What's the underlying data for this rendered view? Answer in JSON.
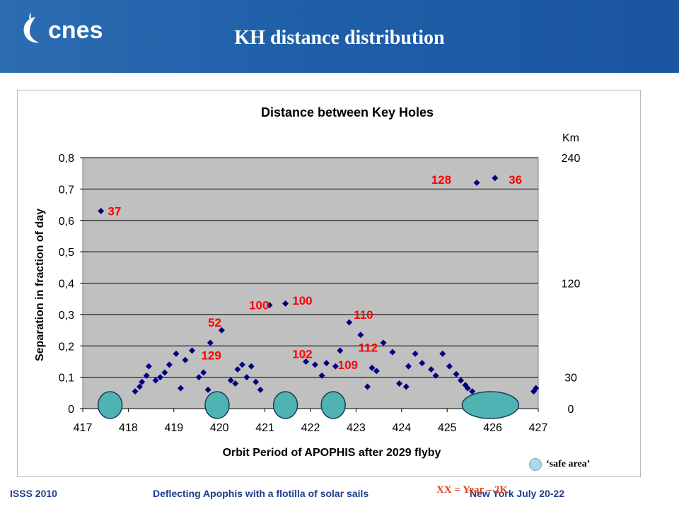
{
  "slide": {
    "title": "KH distance distribution",
    "logo": "cnes",
    "legend_label": "‘safe area’",
    "xx_note": "XX = Year – 2K",
    "footer": {
      "left": "ISSS 2010",
      "center": "Deflecting Apophis with a flotilla of solar sails",
      "right": "New York July 20-22"
    }
  },
  "colors": {
    "banner": "#1f5fa8",
    "plot_bg": "#c0c0c0",
    "marker": "#000080",
    "annotation": "#ff0000",
    "safe_area": "#4fb3b3"
  },
  "chart_data": {
    "type": "scatter",
    "title": "Distance between Key Holes",
    "xlabel": "Orbit Period of APOPHIS after 2029 flyby",
    "ylabel": "Separation in fraction of day",
    "xlim": [
      417,
      427
    ],
    "ylim": [
      0,
      0.8
    ],
    "x_ticks": [
      "417",
      "418",
      "419",
      "420",
      "421",
      "422",
      "423",
      "424",
      "425",
      "426",
      "427"
    ],
    "y_ticks": [
      "0",
      "0,1",
      "0,2",
      "0,3",
      "0,4",
      "0,5",
      "0,6",
      "0,7",
      "0,8"
    ],
    "y2_title": "Km",
    "y2_labels": [
      {
        "text": "240",
        "y": 0.8
      },
      {
        "text": "120",
        "y": 0.4
      },
      {
        "text": "30",
        "y": 0.1
      },
      {
        "text": "0",
        "y": 0.0
      }
    ],
    "grid": true,
    "points": [
      [
        417.4,
        0.63
      ],
      [
        418.15,
        0.055
      ],
      [
        418.25,
        0.07
      ],
      [
        418.3,
        0.085
      ],
      [
        418.4,
        0.105
      ],
      [
        418.45,
        0.135
      ],
      [
        418.6,
        0.09
      ],
      [
        418.7,
        0.1
      ],
      [
        418.8,
        0.115
      ],
      [
        418.9,
        0.14
      ],
      [
        419.05,
        0.175
      ],
      [
        419.15,
        0.065
      ],
      [
        419.25,
        0.155
      ],
      [
        419.4,
        0.185
      ],
      [
        419.55,
        0.1
      ],
      [
        419.65,
        0.115
      ],
      [
        419.75,
        0.06
      ],
      [
        419.8,
        0.21
      ],
      [
        420.05,
        0.25
      ],
      [
        420.25,
        0.09
      ],
      [
        420.35,
        0.08
      ],
      [
        420.4,
        0.125
      ],
      [
        420.5,
        0.14
      ],
      [
        420.6,
        0.1
      ],
      [
        420.7,
        0.135
      ],
      [
        420.8,
        0.085
      ],
      [
        420.9,
        0.06
      ],
      [
        421.1,
        0.33
      ],
      [
        421.45,
        0.335
      ],
      [
        421.9,
        0.15
      ],
      [
        422.1,
        0.14
      ],
      [
        422.25,
        0.105
      ],
      [
        422.35,
        0.145
      ],
      [
        422.55,
        0.135
      ],
      [
        422.65,
        0.185
      ],
      [
        422.85,
        0.275
      ],
      [
        423.1,
        0.235
      ],
      [
        423.25,
        0.07
      ],
      [
        423.35,
        0.13
      ],
      [
        423.45,
        0.12
      ],
      [
        423.6,
        0.21
      ],
      [
        423.8,
        0.18
      ],
      [
        423.95,
        0.08
      ],
      [
        424.1,
        0.07
      ],
      [
        424.15,
        0.135
      ],
      [
        424.3,
        0.175
      ],
      [
        424.45,
        0.145
      ],
      [
        424.65,
        0.125
      ],
      [
        424.75,
        0.105
      ],
      [
        424.9,
        0.175
      ],
      [
        425.05,
        0.135
      ],
      [
        425.2,
        0.11
      ],
      [
        425.3,
        0.09
      ],
      [
        425.4,
        0.075
      ],
      [
        425.45,
        0.065
      ],
      [
        425.55,
        0.055
      ],
      [
        425.65,
        0.72
      ],
      [
        426.05,
        0.735
      ],
      [
        426.9,
        0.055
      ],
      [
        426.95,
        0.065
      ]
    ],
    "annotations": [
      {
        "text": "37",
        "x": 417.55,
        "y": 0.63
      },
      {
        "text": "52",
        "x": 419.75,
        "y": 0.275
      },
      {
        "text": "129",
        "x": 419.6,
        "y": 0.17
      },
      {
        "text": "100",
        "x": 420.65,
        "y": 0.33
      },
      {
        "text": "100",
        "x": 421.6,
        "y": 0.345
      },
      {
        "text": "102",
        "x": 421.6,
        "y": 0.175
      },
      {
        "text": "109",
        "x": 422.6,
        "y": 0.14
      },
      {
        "text": "110",
        "x": 422.95,
        "y": 0.3
      },
      {
        "text": "112",
        "x": 423.05,
        "y": 0.195
      },
      {
        "text": "128",
        "x": 424.65,
        "y": 0.73
      },
      {
        "text": "36",
        "x": 426.35,
        "y": 0.73
      }
    ],
    "safe_areas": [
      {
        "x": 417.6
      },
      {
        "x": 419.95
      },
      {
        "x": 421.45
      },
      {
        "x": 422.5
      },
      {
        "x": 425.95,
        "wide": true
      }
    ]
  }
}
